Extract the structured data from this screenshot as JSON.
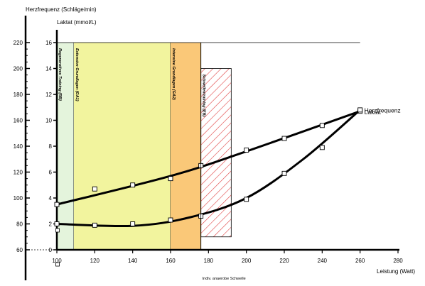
{
  "chart_data": {
    "type": "line",
    "title": "",
    "y1label": "Herzfrequenz (Schläge/min)",
    "y2label": "Laktat (mmol/L)",
    "xlabel": "Leistung (Watt)",
    "xlim": [
      100,
      280
    ],
    "xticks": [
      "100",
      "120",
      "140",
      "160",
      "180",
      "200",
      "220",
      "240",
      "260",
      "280"
    ],
    "y1lim": [
      60,
      220
    ],
    "y1ticks": [
      "60",
      "80",
      "100",
      "120",
      "140",
      "160",
      "180",
      "200",
      "220"
    ],
    "y2lim": [
      0,
      16
    ],
    "y2ticks": [
      "0",
      "2",
      "4",
      "6",
      "8",
      "10",
      "12",
      "14",
      "16"
    ],
    "zones": [
      {
        "label": "Regeneratives Training (RB)",
        "from": 100,
        "to": 109,
        "color": "#e4f4dc"
      },
      {
        "label": "Extensive Grundlagen (GA1)",
        "from": 109,
        "to": 160,
        "color": "#f2f49e"
      },
      {
        "label": "Intensive Grundlagen (GA2)",
        "from": 160,
        "to": 176,
        "color": "#fac878"
      },
      {
        "label": "Schwellentraining (EB)",
        "from": 176,
        "to": 192,
        "y2_top": 14,
        "y2_bottom": 1,
        "pattern": "hatch",
        "color": "#e04040"
      }
    ],
    "annotation_threshold": {
      "label": "Indiv. anaerobe Schwelle",
      "x": 176
    },
    "series": [
      {
        "name": "Herzfrequenz",
        "axis": "y1",
        "points": [
          [
            100,
            95
          ],
          [
            120,
            107
          ],
          [
            140,
            110
          ],
          [
            160,
            115
          ],
          [
            176,
            125
          ],
          [
            200,
            137
          ],
          [
            220,
            146
          ],
          [
            240,
            156
          ],
          [
            260,
            167
          ]
        ]
      },
      {
        "name": "Laktat",
        "axis": "y2",
        "points": [
          [
            100,
            2.0
          ],
          [
            120,
            1.9
          ],
          [
            140,
            2.0
          ],
          [
            160,
            2.3
          ],
          [
            176,
            2.6
          ],
          [
            200,
            3.9
          ],
          [
            220,
            5.9
          ],
          [
            240,
            7.9
          ],
          [
            260,
            10.8
          ]
        ]
      }
    ]
  }
}
